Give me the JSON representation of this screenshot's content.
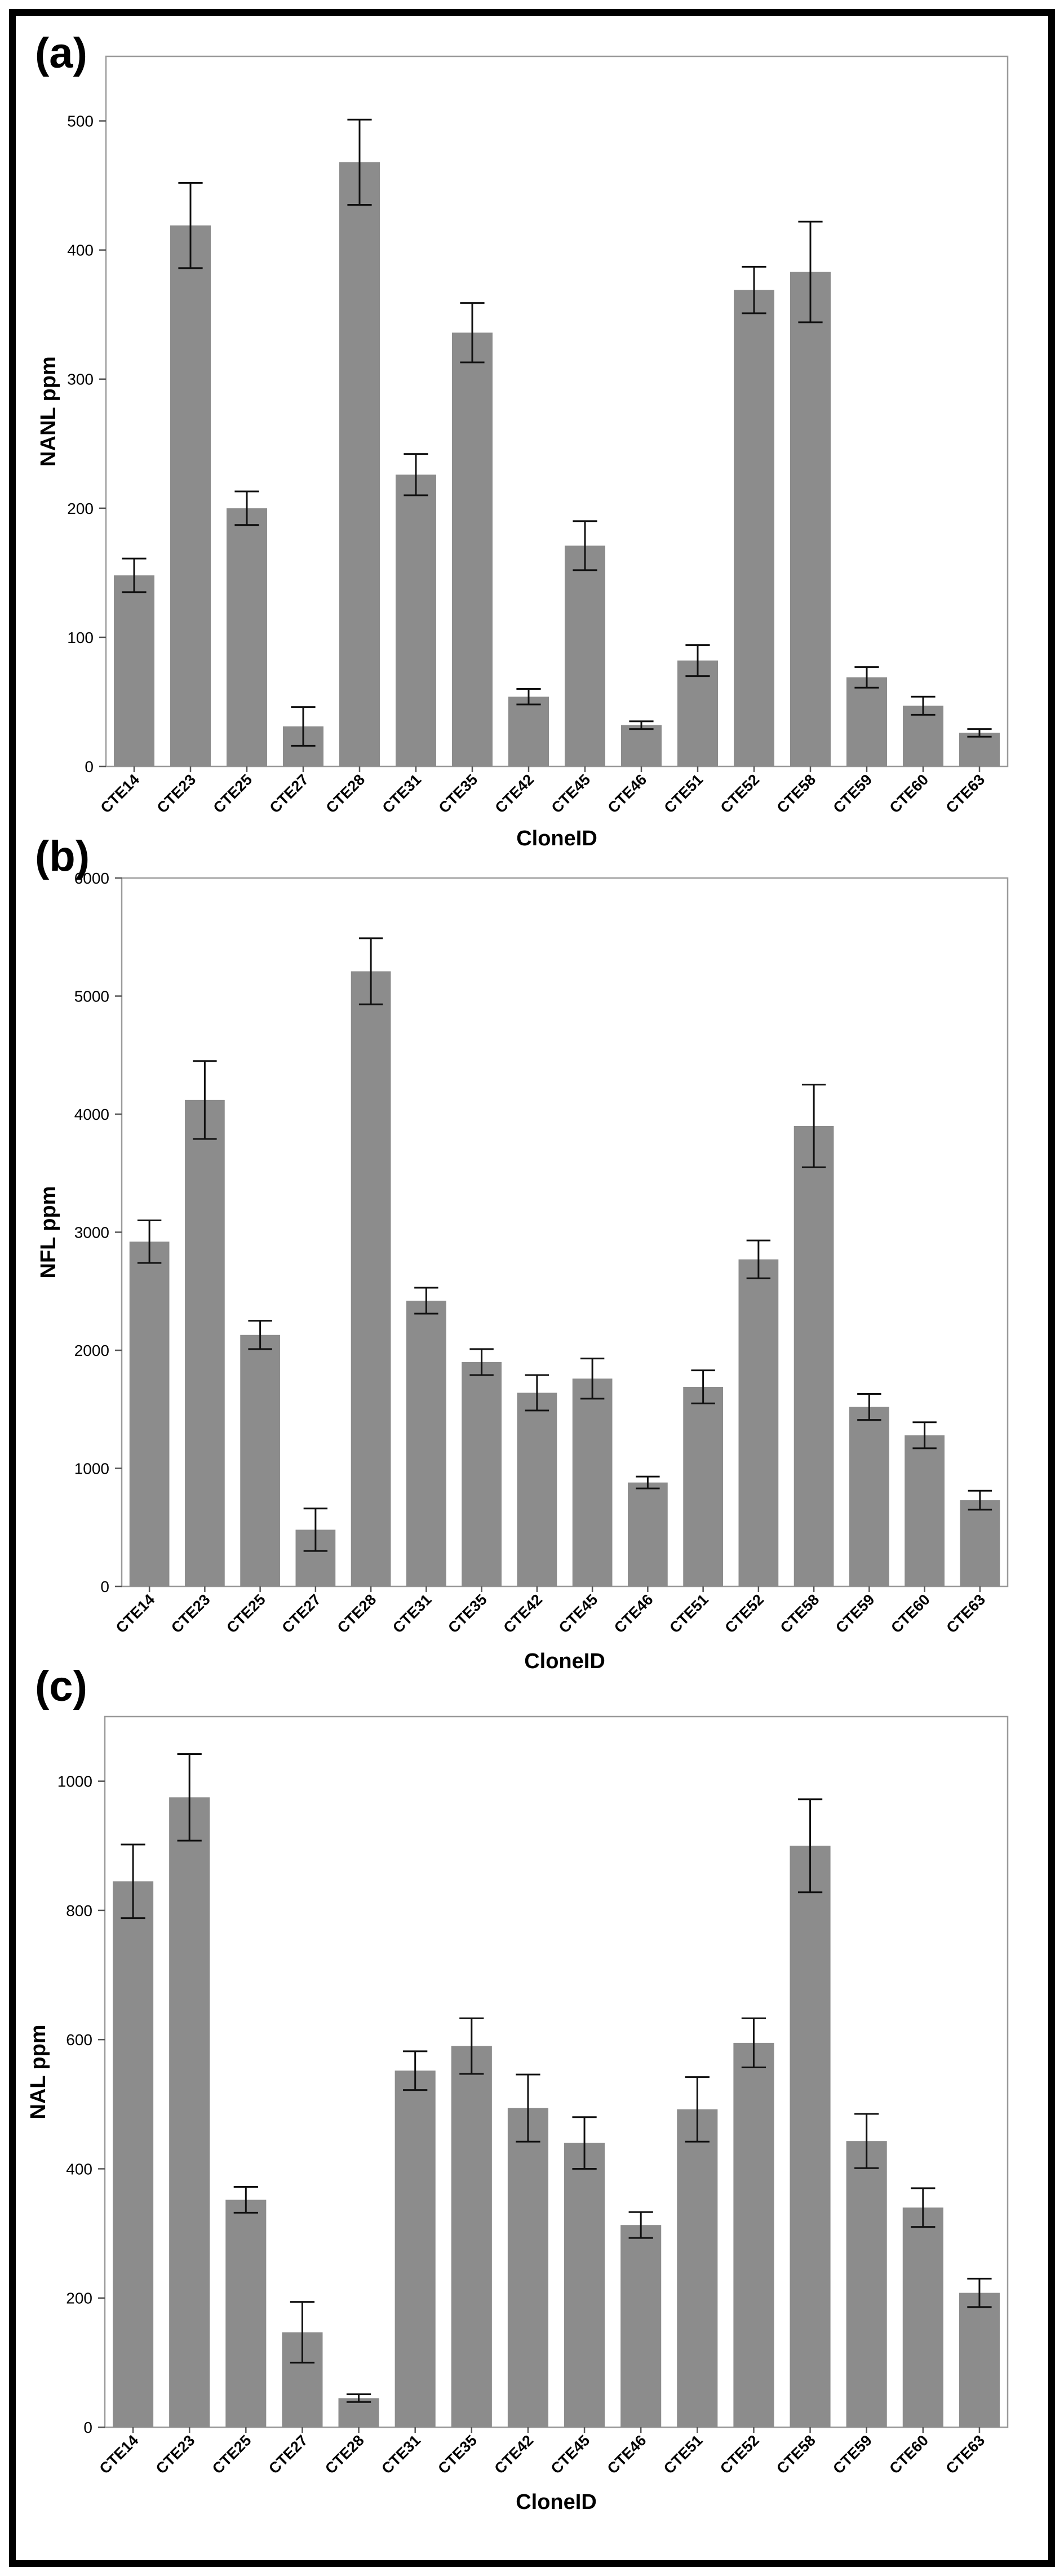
{
  "figure": {
    "frame_color": "#000000",
    "bar_color": "#8c8c8c"
  },
  "chart_data": [
    {
      "panel_label": "(a)",
      "type": "bar",
      "categories": [
        "CTE14",
        "CTE23",
        "CTE25",
        "CTE27",
        "CTE28",
        "CTE31",
        "CTE35",
        "CTE42",
        "CTE45",
        "CTE46",
        "CTE51",
        "CTE52",
        "CTE58",
        "CTE59",
        "CTE60",
        "CTE63"
      ],
      "values": [
        148,
        419,
        200,
        31,
        468,
        226,
        336,
        54,
        171,
        32,
        82,
        369,
        383,
        69,
        47,
        26
      ],
      "error": [
        13,
        33,
        13,
        15,
        33,
        16,
        23,
        6,
        19,
        3,
        12,
        18,
        39,
        8,
        7,
        3
      ],
      "xlabel": "CloneID",
      "ylabel": "NANL ppm",
      "ylim": [
        0,
        550
      ],
      "yticks": [
        0,
        100,
        200,
        300,
        400,
        500
      ]
    },
    {
      "panel_label": "(b)",
      "type": "bar",
      "categories": [
        "CTE14",
        "CTE23",
        "CTE25",
        "CTE27",
        "CTE28",
        "CTE31",
        "CTE35",
        "CTE42",
        "CTE45",
        "CTE46",
        "CTE51",
        "CTE52",
        "CTE58",
        "CTE59",
        "CTE60",
        "CTE63"
      ],
      "values": [
        2920,
        4120,
        2130,
        480,
        5210,
        2420,
        1900,
        1640,
        1760,
        880,
        1690,
        2770,
        3900,
        1520,
        1280,
        730
      ],
      "error": [
        180,
        330,
        120,
        180,
        280,
        110,
        110,
        150,
        170,
        50,
        140,
        160,
        350,
        110,
        110,
        80
      ],
      "xlabel": "CloneID",
      "ylabel": "NFL ppm",
      "ylim": [
        0,
        6000
      ],
      "yticks": [
        0,
        1000,
        2000,
        3000,
        4000,
        5000,
        6000
      ]
    },
    {
      "panel_label": "(c)",
      "type": "bar",
      "categories": [
        "CTE14",
        "CTE23",
        "CTE25",
        "CTE27",
        "CTE28",
        "CTE31",
        "CTE35",
        "CTE42",
        "CTE45",
        "CTE46",
        "CTE51",
        "CTE52",
        "CTE58",
        "CTE59",
        "CTE60",
        "CTE63"
      ],
      "values": [
        845,
        975,
        352,
        147,
        45,
        552,
        590,
        494,
        440,
        313,
        492,
        595,
        900,
        443,
        340,
        208
      ],
      "error": [
        57,
        67,
        20,
        47,
        6,
        30,
        43,
        52,
        40,
        20,
        50,
        38,
        72,
        42,
        30,
        22
      ],
      "xlabel": "CloneID",
      "ylabel": "NAL ppm",
      "ylim": [
        0,
        1100
      ],
      "yticks": [
        0,
        200,
        400,
        600,
        800,
        1000
      ]
    }
  ]
}
